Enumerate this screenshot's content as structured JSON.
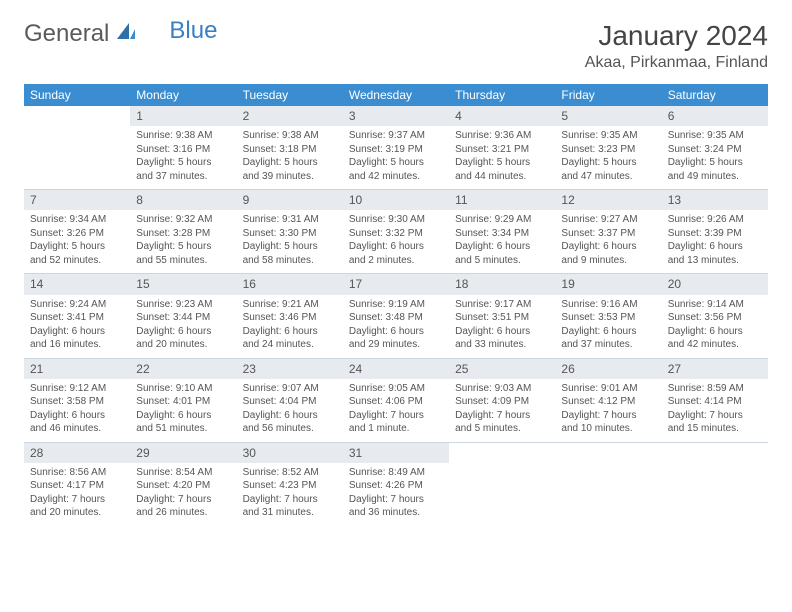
{
  "logo": {
    "general": "General",
    "blue": "Blue"
  },
  "title": "January 2024",
  "location": "Akaa, Pirkanmaa, Finland",
  "colors": {
    "header_bg": "#3a8dd0",
    "header_text": "#ffffff",
    "daynum_bg": "#e7ebef",
    "border": "#cdd6e0",
    "text": "#555555",
    "page_bg": "#ffffff",
    "logo_blue": "#3a7fc4"
  },
  "weekdays": [
    "Sunday",
    "Monday",
    "Tuesday",
    "Wednesday",
    "Thursday",
    "Friday",
    "Saturday"
  ],
  "weeks": [
    [
      null,
      {
        "n": "1",
        "sr": "Sunrise: 9:38 AM",
        "ss": "Sunset: 3:16 PM",
        "d1": "Daylight: 5 hours",
        "d2": "and 37 minutes."
      },
      {
        "n": "2",
        "sr": "Sunrise: 9:38 AM",
        "ss": "Sunset: 3:18 PM",
        "d1": "Daylight: 5 hours",
        "d2": "and 39 minutes."
      },
      {
        "n": "3",
        "sr": "Sunrise: 9:37 AM",
        "ss": "Sunset: 3:19 PM",
        "d1": "Daylight: 5 hours",
        "d2": "and 42 minutes."
      },
      {
        "n": "4",
        "sr": "Sunrise: 9:36 AM",
        "ss": "Sunset: 3:21 PM",
        "d1": "Daylight: 5 hours",
        "d2": "and 44 minutes."
      },
      {
        "n": "5",
        "sr": "Sunrise: 9:35 AM",
        "ss": "Sunset: 3:23 PM",
        "d1": "Daylight: 5 hours",
        "d2": "and 47 minutes."
      },
      {
        "n": "6",
        "sr": "Sunrise: 9:35 AM",
        "ss": "Sunset: 3:24 PM",
        "d1": "Daylight: 5 hours",
        "d2": "and 49 minutes."
      }
    ],
    [
      {
        "n": "7",
        "sr": "Sunrise: 9:34 AM",
        "ss": "Sunset: 3:26 PM",
        "d1": "Daylight: 5 hours",
        "d2": "and 52 minutes."
      },
      {
        "n": "8",
        "sr": "Sunrise: 9:32 AM",
        "ss": "Sunset: 3:28 PM",
        "d1": "Daylight: 5 hours",
        "d2": "and 55 minutes."
      },
      {
        "n": "9",
        "sr": "Sunrise: 9:31 AM",
        "ss": "Sunset: 3:30 PM",
        "d1": "Daylight: 5 hours",
        "d2": "and 58 minutes."
      },
      {
        "n": "10",
        "sr": "Sunrise: 9:30 AM",
        "ss": "Sunset: 3:32 PM",
        "d1": "Daylight: 6 hours",
        "d2": "and 2 minutes."
      },
      {
        "n": "11",
        "sr": "Sunrise: 9:29 AM",
        "ss": "Sunset: 3:34 PM",
        "d1": "Daylight: 6 hours",
        "d2": "and 5 minutes."
      },
      {
        "n": "12",
        "sr": "Sunrise: 9:27 AM",
        "ss": "Sunset: 3:37 PM",
        "d1": "Daylight: 6 hours",
        "d2": "and 9 minutes."
      },
      {
        "n": "13",
        "sr": "Sunrise: 9:26 AM",
        "ss": "Sunset: 3:39 PM",
        "d1": "Daylight: 6 hours",
        "d2": "and 13 minutes."
      }
    ],
    [
      {
        "n": "14",
        "sr": "Sunrise: 9:24 AM",
        "ss": "Sunset: 3:41 PM",
        "d1": "Daylight: 6 hours",
        "d2": "and 16 minutes."
      },
      {
        "n": "15",
        "sr": "Sunrise: 9:23 AM",
        "ss": "Sunset: 3:44 PM",
        "d1": "Daylight: 6 hours",
        "d2": "and 20 minutes."
      },
      {
        "n": "16",
        "sr": "Sunrise: 9:21 AM",
        "ss": "Sunset: 3:46 PM",
        "d1": "Daylight: 6 hours",
        "d2": "and 24 minutes."
      },
      {
        "n": "17",
        "sr": "Sunrise: 9:19 AM",
        "ss": "Sunset: 3:48 PM",
        "d1": "Daylight: 6 hours",
        "d2": "and 29 minutes."
      },
      {
        "n": "18",
        "sr": "Sunrise: 9:17 AM",
        "ss": "Sunset: 3:51 PM",
        "d1": "Daylight: 6 hours",
        "d2": "and 33 minutes."
      },
      {
        "n": "19",
        "sr": "Sunrise: 9:16 AM",
        "ss": "Sunset: 3:53 PM",
        "d1": "Daylight: 6 hours",
        "d2": "and 37 minutes."
      },
      {
        "n": "20",
        "sr": "Sunrise: 9:14 AM",
        "ss": "Sunset: 3:56 PM",
        "d1": "Daylight: 6 hours",
        "d2": "and 42 minutes."
      }
    ],
    [
      {
        "n": "21",
        "sr": "Sunrise: 9:12 AM",
        "ss": "Sunset: 3:58 PM",
        "d1": "Daylight: 6 hours",
        "d2": "and 46 minutes."
      },
      {
        "n": "22",
        "sr": "Sunrise: 9:10 AM",
        "ss": "Sunset: 4:01 PM",
        "d1": "Daylight: 6 hours",
        "d2": "and 51 minutes."
      },
      {
        "n": "23",
        "sr": "Sunrise: 9:07 AM",
        "ss": "Sunset: 4:04 PM",
        "d1": "Daylight: 6 hours",
        "d2": "and 56 minutes."
      },
      {
        "n": "24",
        "sr": "Sunrise: 9:05 AM",
        "ss": "Sunset: 4:06 PM",
        "d1": "Daylight: 7 hours",
        "d2": "and 1 minute."
      },
      {
        "n": "25",
        "sr": "Sunrise: 9:03 AM",
        "ss": "Sunset: 4:09 PM",
        "d1": "Daylight: 7 hours",
        "d2": "and 5 minutes."
      },
      {
        "n": "26",
        "sr": "Sunrise: 9:01 AM",
        "ss": "Sunset: 4:12 PM",
        "d1": "Daylight: 7 hours",
        "d2": "and 10 minutes."
      },
      {
        "n": "27",
        "sr": "Sunrise: 8:59 AM",
        "ss": "Sunset: 4:14 PM",
        "d1": "Daylight: 7 hours",
        "d2": "and 15 minutes."
      }
    ],
    [
      {
        "n": "28",
        "sr": "Sunrise: 8:56 AM",
        "ss": "Sunset: 4:17 PM",
        "d1": "Daylight: 7 hours",
        "d2": "and 20 minutes."
      },
      {
        "n": "29",
        "sr": "Sunrise: 8:54 AM",
        "ss": "Sunset: 4:20 PM",
        "d1": "Daylight: 7 hours",
        "d2": "and 26 minutes."
      },
      {
        "n": "30",
        "sr": "Sunrise: 8:52 AM",
        "ss": "Sunset: 4:23 PM",
        "d1": "Daylight: 7 hours",
        "d2": "and 31 minutes."
      },
      {
        "n": "31",
        "sr": "Sunrise: 8:49 AM",
        "ss": "Sunset: 4:26 PM",
        "d1": "Daylight: 7 hours",
        "d2": "and 36 minutes."
      },
      null,
      null,
      null
    ]
  ]
}
